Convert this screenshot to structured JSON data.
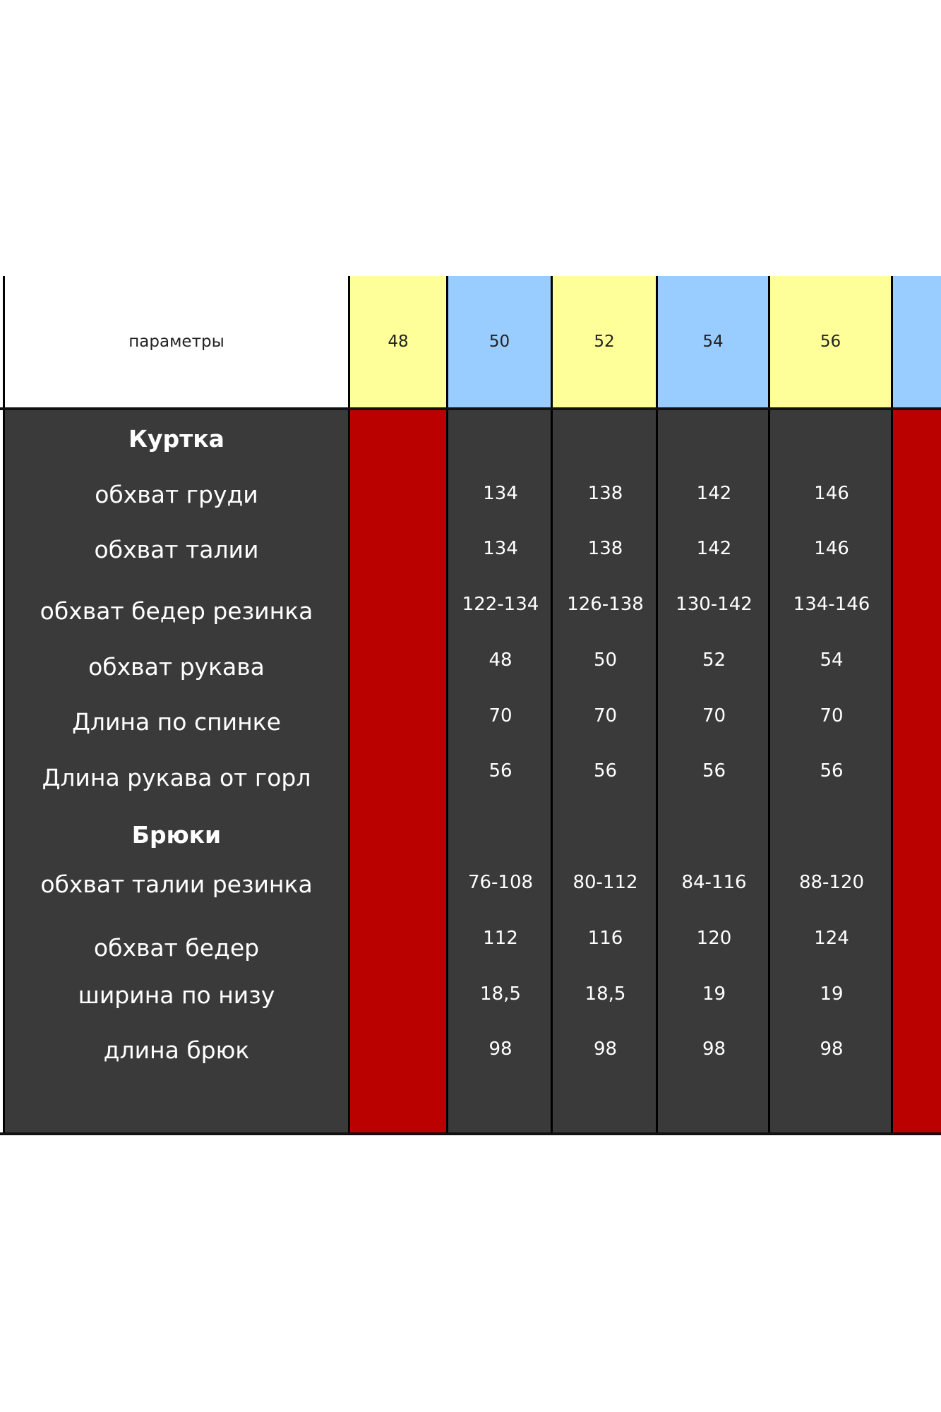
{
  "header": {
    "label": "параметры",
    "sizes": [
      "48",
      "50",
      "52",
      "54",
      "56",
      ""
    ]
  },
  "rows": [
    {
      "label": "Куртка",
      "section": true,
      "values": [
        "",
        "",
        "",
        "",
        "",
        ""
      ]
    },
    {
      "label": "обхват груди",
      "values": [
        "",
        "134",
        "138",
        "142",
        "146",
        ""
      ]
    },
    {
      "label": "обхват талии",
      "values": [
        "",
        "134",
        "138",
        "142",
        "146",
        ""
      ]
    },
    {
      "label": "обхват бедер резинка",
      "values": [
        "",
        "122-134",
        "126-138",
        "130-142",
        "134-146",
        ""
      ]
    },
    {
      "label": "обхват рукава",
      "values": [
        "",
        "48",
        "50",
        "52",
        "54",
        ""
      ]
    },
    {
      "label": "Длина по спинке",
      "values": [
        "",
        "70",
        "70",
        "70",
        "70",
        ""
      ]
    },
    {
      "label": "Длина рукава от горл",
      "values": [
        "",
        "56",
        "56",
        "56",
        "56",
        ""
      ]
    },
    {
      "label": "Брюки",
      "section": true,
      "values": [
        "",
        "",
        "",
        "",
        "",
        ""
      ]
    },
    {
      "label": "обхват талии резинка",
      "values": [
        "",
        "76-108",
        "80-112",
        "84-116",
        "88-120",
        ""
      ]
    },
    {
      "label": "обхват бедер",
      "values": [
        "",
        "112",
        "116",
        "120",
        "124",
        ""
      ]
    },
    {
      "label": "ширина по низу",
      "values": [
        "",
        "18,5",
        "18,5",
        "19",
        "19",
        ""
      ]
    },
    {
      "label": "длина брюк",
      "values": [
        "",
        "98",
        "98",
        "98",
        "98",
        ""
      ]
    }
  ],
  "colors": {
    "header_yellow": "#ffff99",
    "header_blue": "#99ccff",
    "dark_cell": "#3a3a3a",
    "red_cell": "#bb0000"
  }
}
